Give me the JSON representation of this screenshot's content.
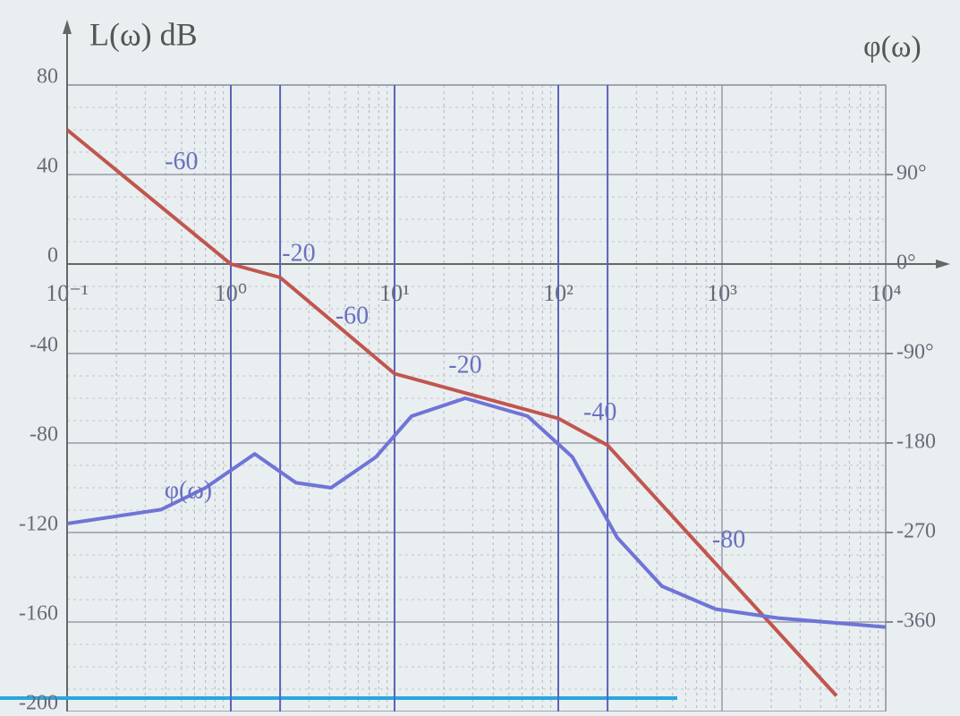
{
  "chart_data": {
    "type": "line",
    "title": "L(ω) dB",
    "y2_title": "φ(ω)",
    "x_scale": "log",
    "xlim": [
      0.1,
      10000
    ],
    "xticks": [
      {
        "value": 0.1,
        "label": "10⁻¹"
      },
      {
        "value": 1,
        "label": "10⁰"
      },
      {
        "value": 10,
        "label": "10¹"
      },
      {
        "value": 100,
        "label": "10²"
      },
      {
        "value": 1000,
        "label": "10³"
      },
      {
        "value": 10000,
        "label": "10⁴"
      }
    ],
    "ylim": [
      -200,
      80
    ],
    "yticks": [
      80,
      40,
      0,
      -40,
      -80,
      -120,
      -160,
      -200
    ],
    "y2lim": [
      -450,
      180
    ],
    "y2ticks": [
      {
        "value": 90,
        "label": "90°"
      },
      {
        "value": 0,
        "label": "0°"
      },
      {
        "value": -90,
        "label": "-90°"
      },
      {
        "value": -180,
        "label": "-180"
      },
      {
        "value": -270,
        "label": "-270"
      },
      {
        "value": -360,
        "label": "-360"
      }
    ],
    "grid": true,
    "vlines": [
      1,
      2,
      10,
      100,
      200
    ],
    "series": [
      {
        "name": "L(ω)",
        "color": "#c0564f",
        "x": [
          0.1,
          1,
          2,
          10,
          100,
          200,
          5000
        ],
        "values": [
          60,
          0,
          -6,
          -49,
          -69,
          -81,
          -193
        ]
      },
      {
        "name": "φ(ω)",
        "color": "#6f74d6",
        "axis": "y2",
        "x": [
          0.1,
          0.375,
          0.7,
          1.4,
          2.5,
          4.1,
          7.7,
          12.7,
          27,
          65,
          122,
          229,
          430,
          916,
          2210,
          10000
        ],
        "values": [
          -261,
          -247,
          -225,
          -191,
          -220,
          -225,
          -194,
          -153,
          -135,
          -153,
          -194,
          -275,
          -324,
          -347,
          -356,
          -365
        ]
      }
    ],
    "annotations": [
      {
        "text": "-60",
        "x": 0.5,
        "y": 45
      },
      {
        "text": "-20",
        "x": 2.6,
        "y": 4
      },
      {
        "text": "-60",
        "x": 5.5,
        "y": -24
      },
      {
        "text": "-20",
        "x": 27,
        "y": -46
      },
      {
        "text": "-40",
        "x": 180,
        "y": -67
      },
      {
        "text": "-80",
        "x": 1100,
        "y": -124
      },
      {
        "text": "φ(ω)",
        "x": 0.55,
        "y": -102
      }
    ]
  }
}
